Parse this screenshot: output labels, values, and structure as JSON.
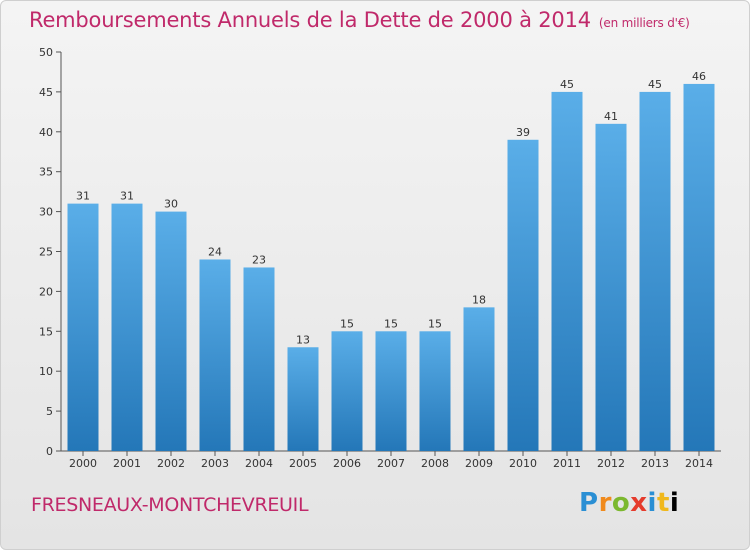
{
  "header": {
    "title": "Remboursements Annuels de la Dette de 2000 à 2014",
    "unit": "(en milliers d'€)"
  },
  "footer": {
    "commune": "FRESNEAUX-MONTCHEVREUIL",
    "logo_letters": [
      "P",
      "r",
      "o",
      "x",
      "i",
      "t",
      "i"
    ]
  },
  "colors": {
    "title": "#c0296a",
    "bar_top": "#5aaee8",
    "bar_bottom": "#2477b8"
  },
  "chart_data": {
    "type": "bar",
    "categories": [
      "2000",
      "2001",
      "2002",
      "2003",
      "2004",
      "2005",
      "2006",
      "2007",
      "2008",
      "2009",
      "2010",
      "2011",
      "2012",
      "2013",
      "2014"
    ],
    "values": [
      31,
      31,
      30,
      24,
      23,
      13,
      15,
      15,
      15,
      18,
      39,
      45,
      41,
      45,
      46
    ],
    "ylim": [
      0,
      50
    ],
    "yticks": [
      0,
      5,
      10,
      15,
      20,
      25,
      30,
      35,
      40,
      45,
      50
    ],
    "grid": false,
    "data_labels": true
  }
}
